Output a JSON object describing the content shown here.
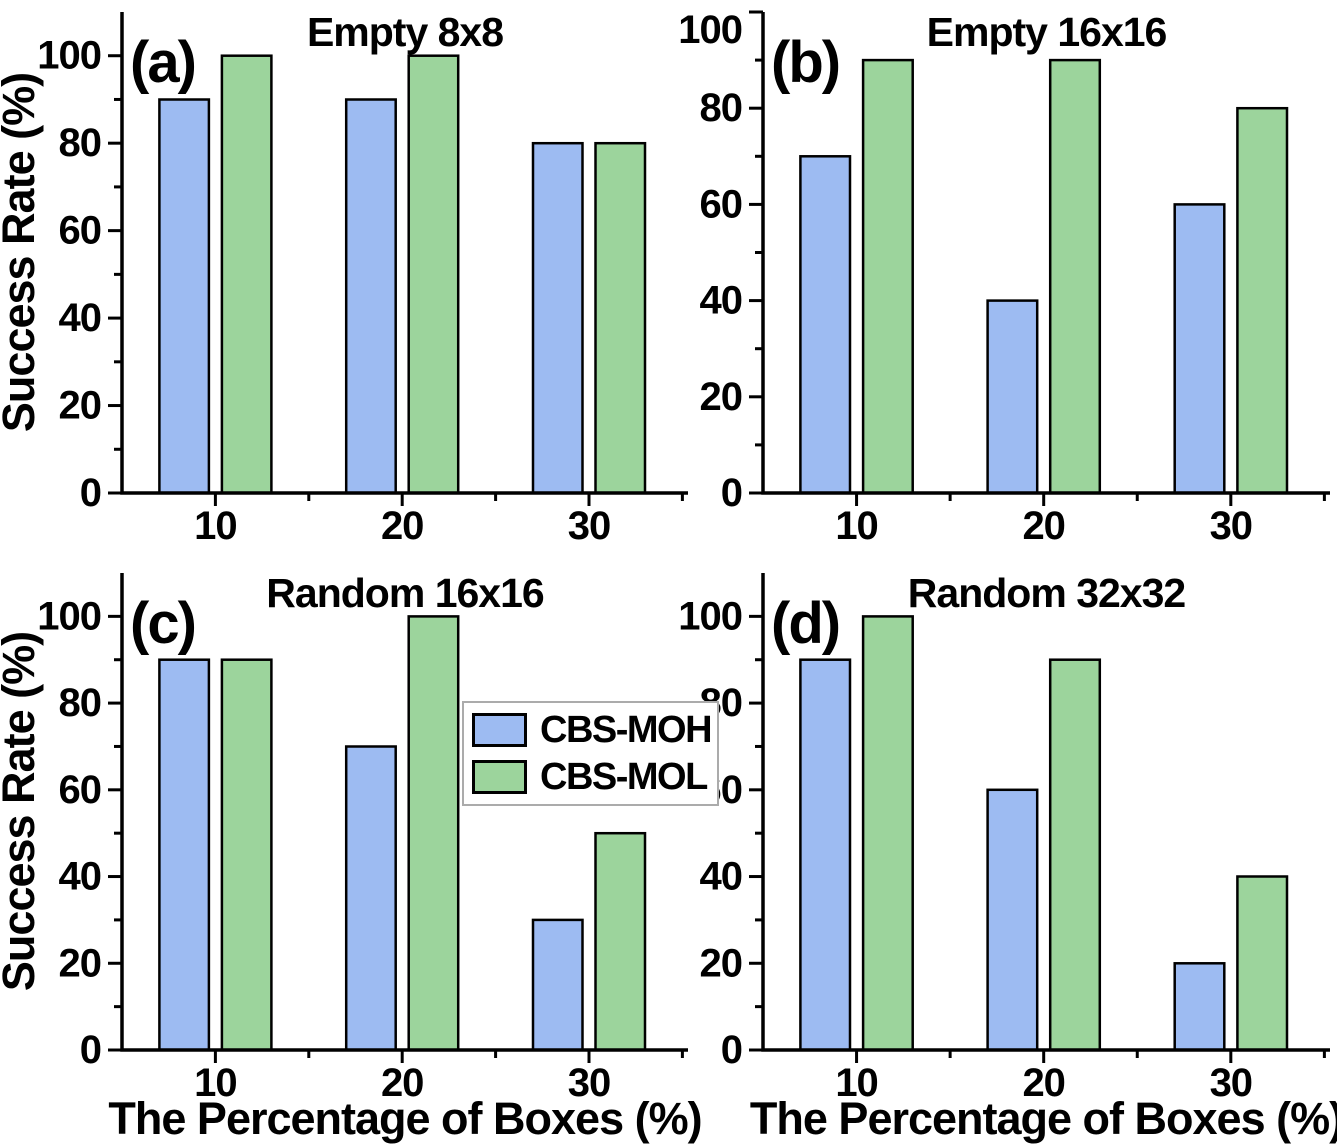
{
  "figure": {
    "background": "#ffffff",
    "axis_color": "#000000",
    "ylabel": "Success Rate (%)",
    "xlabel": "The Percentage of Boxes (%)"
  },
  "legend": {
    "position": "center of figure, overlapping panels c and d",
    "border_color": "#ababab",
    "items": [
      {
        "label": "CBS-MOH",
        "color": "#9dbbf2"
      },
      {
        "label": "CBS-MOL",
        "color": "#9cd49c"
      }
    ]
  },
  "chart_data": [
    {
      "panel": "a",
      "type": "bar",
      "panel_label": "(a)",
      "title": "Empty 8x8",
      "categories": [
        "10",
        "20",
        "30"
      ],
      "series": [
        {
          "name": "CBS-MOH",
          "color": "#9dbbf2",
          "values": [
            90,
            90,
            80
          ]
        },
        {
          "name": "CBS-MOL",
          "color": "#9cd49c",
          "values": [
            100,
            100,
            80
          ]
        }
      ],
      "ylabel": "Success Rate (%)",
      "yticks": [
        0,
        20,
        40,
        60,
        80,
        100
      ],
      "ylim": [
        0,
        110
      ],
      "grid": false
    },
    {
      "panel": "b",
      "type": "bar",
      "panel_label": "(b)",
      "title": "Empty 16x16",
      "categories": [
        "10",
        "20",
        "30"
      ],
      "series": [
        {
          "name": "CBS-MOH",
          "color": "#9dbbf2",
          "values": [
            70,
            40,
            60
          ]
        },
        {
          "name": "CBS-MOL",
          "color": "#9cd49c",
          "values": [
            90,
            90,
            80
          ]
        }
      ],
      "yticks": [
        0,
        20,
        40,
        60,
        80,
        100
      ],
      "ylim": [
        0,
        100
      ],
      "grid": false
    },
    {
      "panel": "c",
      "type": "bar",
      "panel_label": "(c)",
      "title": "Random 16x16",
      "categories": [
        "10",
        "20",
        "30"
      ],
      "series": [
        {
          "name": "CBS-MOH",
          "color": "#9dbbf2",
          "values": [
            90,
            70,
            30
          ]
        },
        {
          "name": "CBS-MOL",
          "color": "#9cd49c",
          "values": [
            90,
            100,
            50
          ]
        }
      ],
      "ylabel": "Success Rate (%)",
      "xlabel": "The Percentage of Boxes (%)",
      "yticks": [
        0,
        20,
        40,
        60,
        80,
        100
      ],
      "ylim": [
        0,
        110
      ],
      "grid": false
    },
    {
      "panel": "d",
      "type": "bar",
      "panel_label": "(d)",
      "title": "Random 32x32",
      "categories": [
        "10",
        "20",
        "30"
      ],
      "series": [
        {
          "name": "CBS-MOH",
          "color": "#9dbbf2",
          "values": [
            90,
            60,
            20
          ]
        },
        {
          "name": "CBS-MOL",
          "color": "#9cd49c",
          "values": [
            100,
            90,
            40
          ]
        }
      ],
      "xlabel": "The Percentage of Boxes (%)",
      "yticks": [
        0,
        20,
        40,
        60,
        80,
        100
      ],
      "ylim": [
        0,
        110
      ],
      "grid": false
    }
  ]
}
